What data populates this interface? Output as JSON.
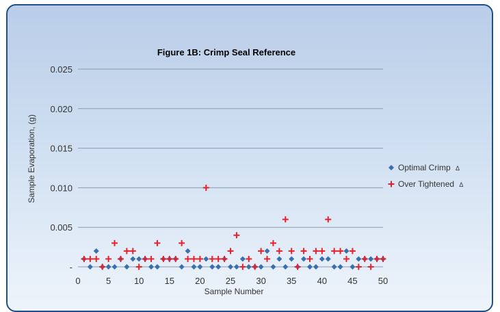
{
  "chart_data": {
    "type": "scatter",
    "title": "Figure 1B: Crimp Seal Reference",
    "xlabel": "Sample Number",
    "ylabel": "Sample Evaporation, (g)",
    "xlim": [
      0,
      50
    ],
    "ylim": [
      0,
      0.025
    ],
    "x_ticks": [
      "0",
      "5",
      "10",
      "15",
      "20",
      "25",
      "30",
      "35",
      "40",
      "45",
      "50"
    ],
    "y_ticks": [
      "-",
      "0.005",
      "0.010",
      "0.015",
      "0.020",
      "0.025"
    ],
    "grid": true,
    "legend_position": "right",
    "series": [
      {
        "name": "Optimal Crimp",
        "legend_suffix": "Δ",
        "color": "#3a70b0",
        "marker": "diamond",
        "x": [
          1,
          2,
          3,
          4,
          5,
          6,
          7,
          8,
          9,
          10,
          11,
          12,
          13,
          14,
          15,
          16,
          17,
          18,
          19,
          20,
          21,
          22,
          23,
          24,
          25,
          26,
          27,
          28,
          29,
          30,
          31,
          32,
          33,
          34,
          35,
          36,
          37,
          38,
          39,
          40,
          41,
          42,
          43,
          44,
          45,
          46,
          47,
          48,
          49,
          50
        ],
        "y": [
          0.001,
          0,
          0.002,
          0,
          0,
          0,
          0.001,
          0,
          0.001,
          0.001,
          0.001,
          0,
          0,
          0.001,
          0.001,
          0.001,
          0,
          0.002,
          0,
          0,
          0.001,
          0,
          0,
          0.001,
          0,
          0,
          0.001,
          0,
          0,
          0,
          0.002,
          0,
          0.001,
          0,
          0.001,
          0,
          0.001,
          0,
          0,
          0.001,
          0.001,
          0,
          0,
          0.002,
          0,
          0.001,
          0.001,
          0.001,
          0.001,
          0.001
        ]
      },
      {
        "name": "Over Tightened",
        "legend_suffix": "Δ",
        "color": "#e8202a",
        "marker": "plus",
        "x": [
          1,
          2,
          3,
          4,
          5,
          6,
          7,
          8,
          9,
          10,
          11,
          12,
          13,
          14,
          15,
          16,
          17,
          18,
          19,
          20,
          21,
          22,
          23,
          24,
          25,
          26,
          27,
          28,
          29,
          30,
          31,
          32,
          33,
          34,
          35,
          36,
          37,
          38,
          39,
          40,
          41,
          42,
          43,
          44,
          45,
          46,
          47,
          48,
          49,
          50
        ],
        "y": [
          0.001,
          0.001,
          0.001,
          0,
          0.001,
          0.003,
          0.001,
          0.002,
          0.002,
          0,
          0.001,
          0.001,
          0.003,
          0.001,
          0.001,
          0.001,
          0.003,
          0.001,
          0.001,
          0.001,
          0.01,
          0.001,
          0.001,
          0.001,
          0.002,
          0.004,
          0,
          0.001,
          0,
          0.002,
          0.001,
          0.003,
          0.002,
          0.006,
          0.002,
          0,
          0.002,
          0.001,
          0.002,
          0.002,
          0.006,
          0.002,
          0.002,
          0.001,
          0.002,
          0,
          0.001,
          0,
          0.001,
          0.001
        ]
      }
    ]
  }
}
